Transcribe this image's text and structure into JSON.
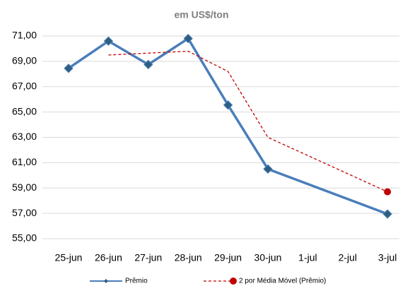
{
  "chart_data": {
    "type": "line",
    "subtitle": "em US$/ton",
    "categories": [
      "25-jun",
      "26-jun",
      "27-jun",
      "28-jun",
      "29-jun",
      "30-jun",
      "1-jul",
      "2-jul",
      "3-jul"
    ],
    "series": [
      {
        "name": "Prêmio",
        "color": "#4a7ebb",
        "marker": "diamond",
        "x": [
          "25-jun",
          "26-jun",
          "27-jun",
          "28-jun",
          "29-jun",
          "30-jun",
          "3-jul"
        ],
        "values": [
          68.45,
          70.6,
          68.75,
          70.8,
          65.55,
          60.5,
          56.95
        ]
      },
      {
        "name": "2 por Média Móvel (Prêmio)",
        "color": "#c00000",
        "marker": "end-dot",
        "dashed": true,
        "x": [
          "26-jun",
          "27-jun",
          "28-jun",
          "29-jun",
          "30-jun",
          "3-jul"
        ],
        "values": [
          69.5,
          69.65,
          69.8,
          68.2,
          63.0,
          58.7
        ]
      }
    ],
    "ylim": [
      55,
      71
    ],
    "yticks": [
      {
        "value": 55,
        "label": "55,00"
      },
      {
        "value": 57,
        "label": "57,00"
      },
      {
        "value": 59,
        "label": "59,00"
      },
      {
        "value": 61,
        "label": "61,00"
      },
      {
        "value": 63,
        "label": "63,00"
      },
      {
        "value": 65,
        "label": "65,00"
      },
      {
        "value": 67,
        "label": "67,00"
      },
      {
        "value": 69,
        "label": "69,00"
      },
      {
        "value": 71,
        "label": "71,00"
      }
    ],
    "grid": true,
    "legend": "bottom"
  }
}
